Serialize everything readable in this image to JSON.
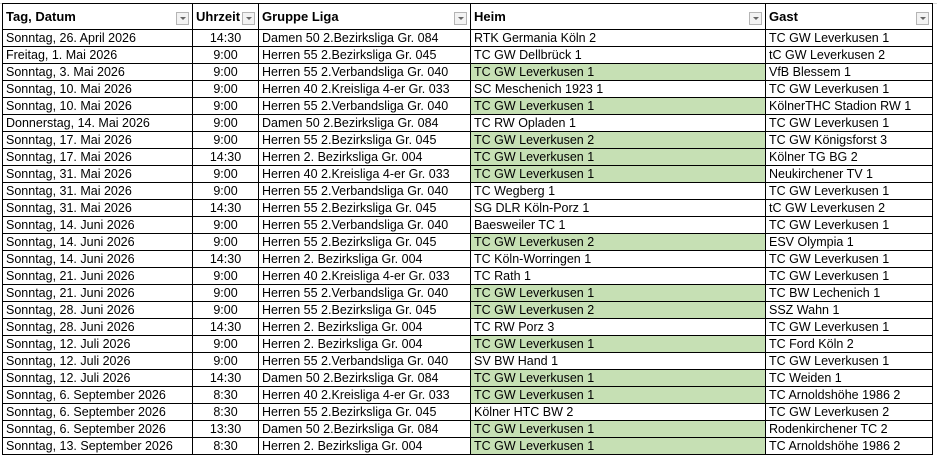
{
  "columns": [
    "Tag, Datum",
    "Uhrzeit",
    "Gruppe Liga",
    "Heim",
    "Gast"
  ],
  "highlight_color": "#c6e0b4",
  "rows": [
    {
      "date": "Sonntag, 26. April 2026",
      "time": "14:30",
      "league": "Damen 50 2.Bezirksliga Gr. 084",
      "home": "RTK Germania Köln 2",
      "guest": "TC GW Leverkusen 1",
      "home_highlight": false
    },
    {
      "date": "Freitag, 1. Mai 2026",
      "time": "9:00",
      "league": "Herren 55 2.Bezirksliga Gr. 045",
      "home": "TC GW Dellbrück 1",
      "guest": "tC GW Leverkusen 2",
      "home_highlight": false
    },
    {
      "date": "Sonntag, 3. Mai 2026",
      "time": "9:00",
      "league": "Herren 55 2.Verbandsliga Gr. 040",
      "home": "TC GW Leverkusen 1",
      "guest": " VfB Blessem 1",
      "home_highlight": true
    },
    {
      "date": "Sonntag, 10. Mai 2026",
      "time": "9:00",
      "league": "Herren 40 2.Kreisliga 4-er Gr. 033",
      "home": "SC Meschenich 1923 1",
      "guest": "TC GW Leverkusen 1",
      "home_highlight": false
    },
    {
      "date": "Sonntag, 10. Mai 2026",
      "time": "9:00",
      "league": "Herren 55 2.Verbandsliga Gr. 040",
      "home": "TC GW Leverkusen 1",
      "guest": "KölnerTHC Stadion RW 1",
      "home_highlight": true
    },
    {
      "date": "Donnerstag, 14. Mai 2026",
      "time": "9:00",
      "league": "Damen 50 2.Bezirksliga Gr. 084",
      "home": "TC RW Opladen 1",
      "guest": "TC GW Leverkusen 1",
      "home_highlight": false
    },
    {
      "date": "Sonntag, 17. Mai 2026",
      "time": "9:00",
      "league": "Herren 55 2.Bezirksliga Gr. 045",
      "home": "TC GW Leverkusen 2",
      "guest": "TC GW Königsforst 3",
      "home_highlight": true
    },
    {
      "date": "Sonntag, 17. Mai 2026",
      "time": "14:30",
      "league": "Herren 2. Bezirksliga Gr. 004",
      "home": "TC GW Leverkusen 1",
      "guest": "Kölner TG BG 2",
      "home_highlight": true
    },
    {
      "date": "Sonntag, 31. Mai 2026",
      "time": "9:00",
      "league": "Herren 40 2.Kreisliga 4-er Gr. 033",
      "home": "TC GW Leverkusen 1",
      "guest": "Neukirchener TV 1",
      "home_highlight": true
    },
    {
      "date": "Sonntag, 31. Mai 2026",
      "time": "9:00",
      "league": "Herren 55 2.Verbandsliga Gr. 040",
      "home": "TC Wegberg 1",
      "guest": "TC GW Leverkusen 1",
      "home_highlight": false
    },
    {
      "date": "Sonntag, 31. Mai 2026",
      "time": "14:30",
      "league": "Herren 55 2.Bezirksliga Gr. 045",
      "home": "SG DLR Köln-Porz 1",
      "guest": "tC GW Leverkusen 2",
      "home_highlight": false
    },
    {
      "date": "Sonntag, 14. Juni 2026",
      "time": "9:00",
      "league": "Herren 55 2.Verbandsliga Gr. 040",
      "home": "Baesweiler TC 1",
      "guest": "TC GW Leverkusen 1",
      "home_highlight": false
    },
    {
      "date": "Sonntag, 14. Juni 2026",
      "time": "9:00",
      "league": "Herren 55 2.Bezirksliga Gr. 045",
      "home": "TC GW Leverkusen 2",
      "guest": "ESV Olympia 1",
      "home_highlight": true
    },
    {
      "date": "Sonntag, 14. Juni 2026",
      "time": "14:30",
      "league": "Herren 2. Bezirksliga Gr. 004",
      "home": "TC Köln-Worringen 1",
      "guest": "TC GW Leverkusen 1",
      "home_highlight": false
    },
    {
      "date": "Sonntag, 21. Juni 2026",
      "time": "9:00",
      "league": "Herren 40 2.Kreisliga 4-er Gr. 033",
      "home": "TC Rath 1",
      "guest": "TC GW Leverkusen 1",
      "home_highlight": false
    },
    {
      "date": "Sonntag, 21. Juni 2026",
      "time": "9:00",
      "league": "Herren 55 2.Verbandsliga Gr. 040",
      "home": "TC GW Leverkusen 1",
      "guest": "TC BW Lechenich 1",
      "home_highlight": true
    },
    {
      "date": "Sonntag, 28. Juni 2026",
      "time": "9:00",
      "league": "Herren 55 2.Bezirksliga Gr. 045",
      "home": "TC GW Leverkusen 2",
      "guest": "SSZ Wahn 1",
      "home_highlight": true
    },
    {
      "date": "Sonntag, 28. Juni 2026",
      "time": "14:30",
      "league": "Herren 2. Bezirksliga Gr. 004",
      "home": "TC RW Porz 3",
      "guest": "TC GW Leverkusen 1",
      "home_highlight": false
    },
    {
      "date": "Sonntag, 12. Juli 2026",
      "time": "9:00",
      "league": "Herren 2. Bezirksliga Gr. 004",
      "home": "TC GW Leverkusen 1",
      "guest": "TC Ford Köln 2",
      "home_highlight": true
    },
    {
      "date": "Sonntag, 12. Juli 2026",
      "time": "9:00",
      "league": "Herren 55 2.Verbandsliga Gr. 040",
      "home": "SV BW Hand 1",
      "guest": "TC GW Leverkusen 1",
      "home_highlight": false
    },
    {
      "date": "Sonntag, 12. Juli 2026",
      "time": "14:30",
      "league": "Damen 50 2.Bezirksliga Gr. 084",
      "home": "TC GW Leverkusen 1",
      "guest": "TC Weiden 1",
      "home_highlight": true
    },
    {
      "date": "Sonntag, 6. September 2026",
      "time": "8:30",
      "league": "Herren 40 2.Kreisliga 4-er Gr. 033",
      "home": "TC GW Leverkusen 1",
      "guest": "TC Arnoldshöhe 1986 2",
      "home_highlight": true
    },
    {
      "date": "Sonntag, 6. September 2026",
      "time": "8:30",
      "league": "Herren 55 2.Bezirksliga Gr. 045",
      "home": "Kölner HTC BW 2",
      "guest": "TC GW Leverkusen 2",
      "home_highlight": false
    },
    {
      "date": "Sonntag, 6. September 2026",
      "time": "13:30",
      "league": "Damen 50 2.Bezirksliga Gr. 084",
      "home": "TC GW Leverkusen 1",
      "guest": "Rodenkirchener TC 2",
      "home_highlight": true
    },
    {
      "date": "Sonntag, 13. September 2026",
      "time": "8:30",
      "league": "Herren 2. Bezirksliga Gr. 004",
      "home": "TC GW Leverkusen 1",
      "guest": "TC Arnoldshöhe 1986 2",
      "home_highlight": true
    }
  ]
}
